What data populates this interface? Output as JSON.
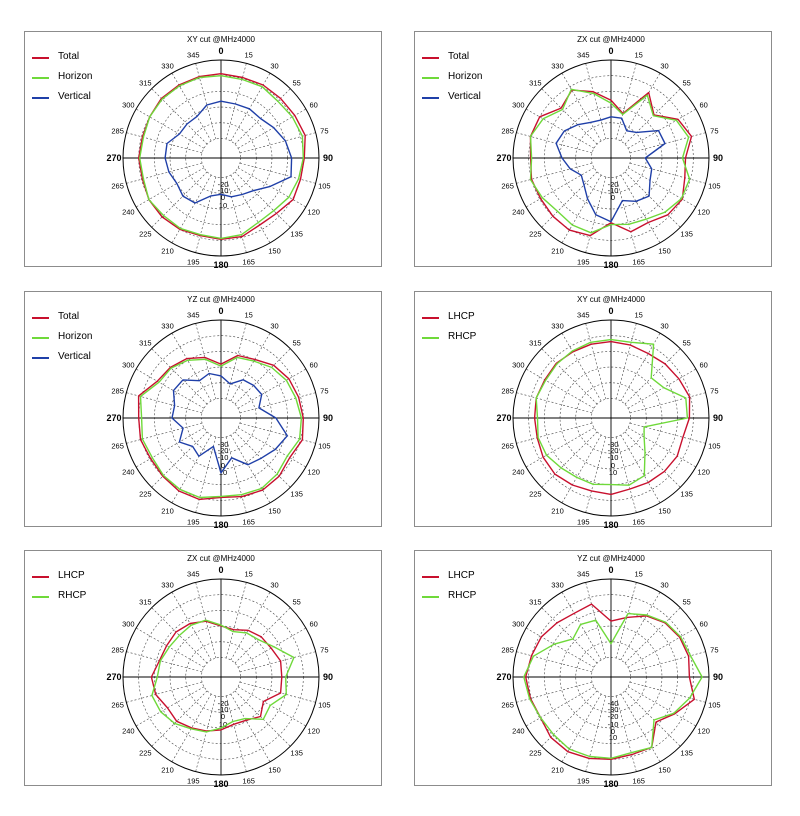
{
  "colors": {
    "red": "#c8102e",
    "green": "#6fd93a",
    "blue": "#1f3fa8"
  },
  "chart_data": [
    {
      "type": "polar-line",
      "title": "XY cut @MHz4000",
      "angle_labels": [
        "0",
        "15",
        "30",
        "55",
        "60",
        "75",
        "90",
        "105",
        "120",
        "135",
        "150",
        "165",
        "180",
        "195",
        "210",
        "225",
        "240",
        "265",
        "270",
        "285",
        "300",
        "315",
        "330",
        "345"
      ],
      "radial_labels": [
        "-20",
        "-10",
        "0",
        "10"
      ],
      "grid": true,
      "legend_position": "top-left",
      "series": [
        {
          "name": "Total",
          "color": "#c8102e",
          "values": [
            0.86,
            0.85,
            0.86,
            0.86,
            0.87,
            0.89,
            0.85,
            0.84,
            0.85,
            0.8,
            0.79,
            0.83,
            0.83,
            0.82,
            0.84,
            0.85,
            0.85,
            0.83,
            0.84,
            0.83,
            0.84,
            0.86,
            0.86,
            0.86
          ]
        },
        {
          "name": "Horizon",
          "color": "#6fd93a",
          "values": [
            0.84,
            0.83,
            0.84,
            0.82,
            0.84,
            0.86,
            0.84,
            0.82,
            0.8,
            0.76,
            0.76,
            0.81,
            0.82,
            0.81,
            0.83,
            0.83,
            0.85,
            0.82,
            0.83,
            0.82,
            0.84,
            0.85,
            0.85,
            0.85
          ]
        },
        {
          "name": "Vertical",
          "color": "#1f3fa8",
          "values": [
            0.58,
            0.57,
            0.58,
            0.57,
            0.62,
            0.68,
            0.72,
            0.74,
            0.58,
            0.47,
            0.43,
            0.41,
            0.37,
            0.4,
            0.53,
            0.55,
            0.52,
            0.55,
            0.57,
            0.57,
            0.49,
            0.49,
            0.49,
            0.56
          ]
        }
      ]
    },
    {
      "type": "polar-line",
      "title": "ZX cut @MHz4000",
      "angle_labels": [
        "0",
        "15",
        "30",
        "55",
        "60",
        "75",
        "90",
        "105",
        "120",
        "135",
        "150",
        "165",
        "180",
        "195",
        "210",
        "225",
        "240",
        "265",
        "270",
        "285",
        "300",
        "315",
        "330",
        "345"
      ],
      "radial_labels": [
        "-20",
        "-10",
        "0"
      ],
      "grid": true,
      "legend_position": "top-left",
      "series": [
        {
          "name": "Total",
          "color": "#c8102e",
          "values": [
            0.59,
            0.47,
            0.77,
            0.62,
            0.79,
            0.85,
            0.76,
            0.78,
            0.84,
            0.82,
            0.76,
            0.78,
            0.66,
            0.82,
            0.85,
            0.84,
            0.83,
            0.84,
            0.82,
            0.85,
            0.84,
            0.72,
            0.8,
            0.7
          ]
        },
        {
          "name": "Horizon",
          "color": "#6fd93a",
          "values": [
            0.56,
            0.46,
            0.74,
            0.61,
            0.77,
            0.82,
            0.73,
            0.83,
            0.83,
            0.78,
            0.72,
            0.7,
            0.68,
            0.79,
            0.79,
            0.77,
            0.81,
            0.85,
            0.81,
            0.85,
            0.8,
            0.7,
            0.81,
            0.68
          ]
        },
        {
          "name": "Vertical",
          "color": "#1f3fa8",
          "values": [
            0.42,
            0.42,
            0.32,
            0.37,
            0.56,
            0.57,
            0.35,
            0.43,
            0.46,
            0.55,
            0.51,
            0.45,
            0.65,
            0.6,
            0.48,
            0.39,
            0.35,
            0.43,
            0.5,
            0.58,
            0.55,
            0.48,
            0.42,
            0.4
          ]
        }
      ]
    },
    {
      "type": "polar-line",
      "title": "YZ cut @MHz4000",
      "angle_labels": [
        "0",
        "15",
        "30",
        "55",
        "60",
        "75",
        "90",
        "105",
        "120",
        "135",
        "150",
        "165",
        "180",
        "195",
        "210",
        "225",
        "240",
        "265",
        "270",
        "285",
        "300",
        "315",
        "330",
        "345"
      ],
      "radial_labels": [
        "-30",
        "-20",
        "-10",
        "0",
        "10"
      ],
      "grid": true,
      "legend_position": "top-left",
      "series": [
        {
          "name": "Total",
          "color": "#c8102e",
          "values": [
            0.55,
            0.66,
            0.69,
            0.76,
            0.8,
            0.82,
            0.84,
            0.86,
            0.81,
            0.84,
            0.85,
            0.83,
            0.81,
            0.86,
            0.86,
            0.84,
            0.83,
            0.85,
            0.84,
            0.87,
            0.75,
            0.73,
            0.7,
            0.64
          ]
        },
        {
          "name": "Horizon",
          "color": "#6fd93a",
          "values": [
            0.53,
            0.64,
            0.67,
            0.73,
            0.77,
            0.79,
            0.82,
            0.83,
            0.78,
            0.81,
            0.83,
            0.81,
            0.8,
            0.84,
            0.84,
            0.83,
            0.81,
            0.83,
            0.81,
            0.85,
            0.73,
            0.72,
            0.68,
            0.62
          ]
        },
        {
          "name": "Vertical",
          "color": "#1f3fa8",
          "values": [
            0.43,
            0.36,
            0.45,
            0.47,
            0.48,
            0.4,
            0.56,
            0.7,
            0.64,
            0.58,
            0.55,
            0.42,
            0.56,
            0.3,
            0.45,
            0.41,
            0.49,
            0.4,
            0.5,
            0.49,
            0.56,
            0.55,
            0.44,
            0.47
          ]
        }
      ]
    },
    {
      "type": "polar-line",
      "title": "XY cut @MHz4000",
      "angle_labels": [
        "0",
        "15",
        "30",
        "55",
        "60",
        "75",
        "90",
        "105",
        "120",
        "135",
        "150",
        "165",
        "180",
        "195",
        "210",
        "225",
        "240",
        "265",
        "270",
        "285",
        "300",
        "315",
        "330",
        "345"
      ],
      "radial_labels": [
        "-30",
        "-20",
        "-10",
        "0",
        "10"
      ],
      "grid": true,
      "legend_position": "top-left",
      "series": [
        {
          "name": "LHCP",
          "color": "#c8102e",
          "values": [
            0.78,
            0.77,
            0.76,
            0.78,
            0.8,
            0.83,
            0.8,
            0.76,
            0.78,
            0.77,
            0.76,
            0.75,
            0.78,
            0.77,
            0.79,
            0.81,
            0.8,
            0.78,
            0.78,
            0.79,
            0.78,
            0.79,
            0.78,
            0.78
          ]
        },
        {
          "name": "RHCP",
          "color": "#6fd93a",
          "values": [
            0.8,
            0.8,
            0.87,
            0.58,
            0.62,
            0.79,
            0.78,
            0.35,
            0.39,
            0.49,
            0.68,
            0.71,
            0.68,
            0.7,
            0.7,
            0.72,
            0.76,
            0.77,
            0.75,
            0.79,
            0.77,
            0.78,
            0.79,
            0.8
          ]
        }
      ]
    },
    {
      "type": "polar-line",
      "title": "ZX cut @MHz4000",
      "angle_labels": [
        "0",
        "15",
        "30",
        "55",
        "60",
        "75",
        "90",
        "105",
        "120",
        "135",
        "150",
        "165",
        "180",
        "195",
        "210",
        "225",
        "240",
        "265",
        "270",
        "285",
        "300",
        "315",
        "330",
        "345"
      ],
      "radial_labels": [
        "-20",
        "-10",
        "0",
        "10"
      ],
      "grid": true,
      "legend_position": "top-left",
      "series": [
        {
          "name": "LHCP",
          "color": "#c8102e",
          "values": [
            0.52,
            0.5,
            0.55,
            0.58,
            0.59,
            0.63,
            0.62,
            0.63,
            0.5,
            0.57,
            0.51,
            0.5,
            0.54,
            0.57,
            0.6,
            0.64,
            0.63,
            0.69,
            0.71,
            0.65,
            0.64,
            0.65,
            0.63,
            0.59
          ]
        },
        {
          "name": "RHCP",
          "color": "#6fd93a",
          "values": [
            0.53,
            0.48,
            0.52,
            0.54,
            0.62,
            0.77,
            0.66,
            0.69,
            0.58,
            0.61,
            0.49,
            0.47,
            0.52,
            0.58,
            0.61,
            0.67,
            0.71,
            0.73,
            0.65,
            0.64,
            0.61,
            0.6,
            0.61,
            0.6
          ]
        }
      ]
    },
    {
      "type": "polar-line",
      "title": "YZ cut @MHz4000",
      "angle_labels": [
        "0",
        "15",
        "30",
        "55",
        "60",
        "75",
        "90",
        "105",
        "120",
        "135",
        "150",
        "165",
        "180",
        "195",
        "210",
        "225",
        "240",
        "265",
        "270",
        "285",
        "300",
        "315",
        "330",
        "345"
      ],
      "radial_labels": [
        "-40",
        "-30",
        "-20",
        "-10",
        "0",
        "10"
      ],
      "grid": true,
      "legend_position": "top-left",
      "series": [
        {
          "name": "LHCP",
          "color": "#c8102e",
          "values": [
            0.57,
            0.63,
            0.72,
            0.78,
            0.81,
            0.82,
            0.8,
            0.88,
            0.75,
            0.65,
            0.83,
            0.82,
            0.84,
            0.86,
            0.88,
            0.87,
            0.83,
            0.85,
            0.87,
            0.84,
            0.82,
            0.78,
            0.75,
            0.77
          ]
        },
        {
          "name": "RHCP",
          "color": "#6fd93a",
          "values": [
            0.34,
            0.67,
            0.73,
            0.79,
            0.82,
            0.84,
            0.93,
            0.83,
            0.74,
            0.62,
            0.83,
            0.8,
            0.83,
            0.84,
            0.85,
            0.83,
            0.83,
            0.86,
            0.89,
            0.82,
            0.67,
            0.55,
            0.62,
            0.6
          ]
        }
      ]
    }
  ]
}
